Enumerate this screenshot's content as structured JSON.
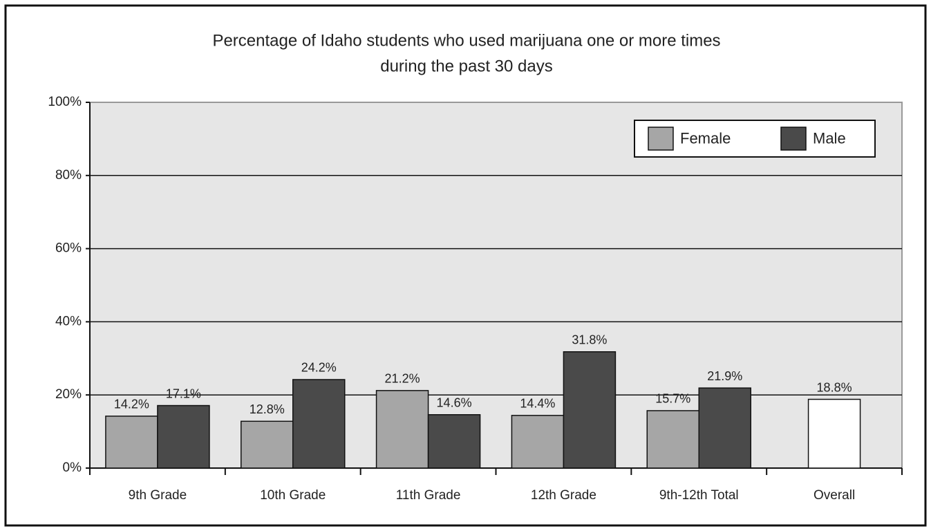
{
  "chart_data": {
    "type": "bar",
    "title": [
      "Percentage of Idaho students who used marijuana one or more times",
      "during the past 30 days"
    ],
    "categories": [
      "9th Grade",
      "10th Grade",
      "11th Grade",
      "12th Grade",
      "9th-12th Total",
      "Overall"
    ],
    "series": [
      {
        "name": "Female",
        "color": "#a6a6a6",
        "values": [
          14.2,
          12.8,
          21.2,
          14.4,
          15.7,
          null
        ],
        "value_labels": [
          "14.2%",
          "12.8%",
          "21.2%",
          "14.4%",
          "15.7%",
          null
        ]
      },
      {
        "name": "Male",
        "color": "#4a4a4a",
        "values": [
          17.1,
          24.2,
          14.6,
          31.8,
          21.9,
          null
        ],
        "value_labels": [
          "17.1%",
          "24.2%",
          "14.6%",
          "31.8%",
          "21.9%",
          null
        ]
      },
      {
        "color": "#ffffff",
        "values": [
          null,
          null,
          null,
          null,
          null,
          18.8
        ],
        "value_labels": [
          null,
          null,
          null,
          null,
          null,
          "18.8%"
        ]
      }
    ],
    "ylim": [
      0,
      100
    ],
    "yticks": [
      {
        "value": 0,
        "label": "0%"
      },
      {
        "value": 20,
        "label": "20%"
      },
      {
        "value": 40,
        "label": "40%"
      },
      {
        "value": 60,
        "label": "60%"
      },
      {
        "value": 80,
        "label": "80%"
      },
      {
        "value": 100,
        "label": "100%"
      }
    ],
    "grid": true,
    "legend": "top-right"
  }
}
